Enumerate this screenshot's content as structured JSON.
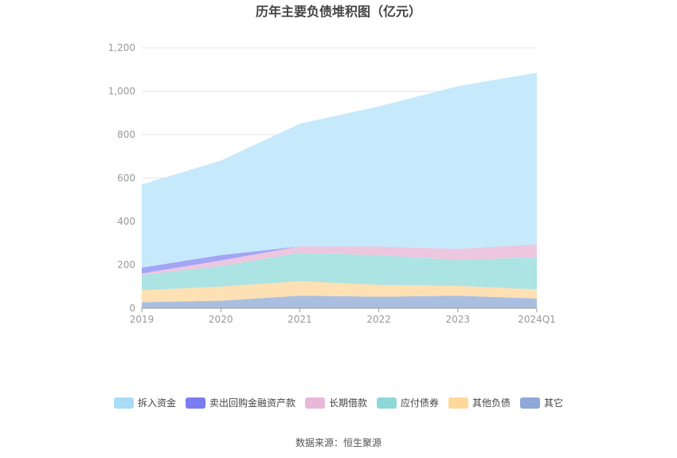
{
  "chart_data": {
    "type": "area",
    "stacked": true,
    "title": "历年主要负债堆积图（亿元）",
    "categories": [
      "2019",
      "2020",
      "2021",
      "2022",
      "2023",
      "2024Q1"
    ],
    "ylim": [
      0,
      1200
    ],
    "yticks": [
      "0",
      "200",
      "400",
      "600",
      "800",
      "1,000",
      "1,200"
    ],
    "ytick_values": [
      0,
      200,
      400,
      600,
      800,
      1000,
      1200
    ],
    "grid": true,
    "legend_position": "bottom",
    "series": [
      {
        "name": "其它",
        "color": "#aabfe0",
        "values": [
          28,
          35,
          58,
          53,
          58,
          45
        ]
      },
      {
        "name": "其他负债",
        "color": "#fde0b4",
        "values": [
          55,
          65,
          67,
          55,
          45,
          42
        ]
      },
      {
        "name": "应付债券",
        "color": "#ace3e3",
        "values": [
          70,
          95,
          130,
          137,
          120,
          148
        ]
      },
      {
        "name": "长期借款",
        "color": "#edc6e0",
        "values": [
          7,
          25,
          30,
          40,
          50,
          60
        ]
      },
      {
        "name": "卖出回购金融资产款",
        "color": "#a3a5f5",
        "values": [
          27,
          25,
          0,
          0,
          0,
          0
        ]
      },
      {
        "name": "拆入资金",
        "color": "#c6e9fb",
        "values": [
          383,
          435,
          565,
          645,
          750,
          790
        ]
      }
    ],
    "legend_order": [
      "拆入资金",
      "卖出回购金融资产款",
      "长期借款",
      "应付债券",
      "其他负债",
      "其它"
    ],
    "legend_colors": {
      "拆入资金": "#a8dcf7",
      "卖出回购金融资产款": "#7b7cf0",
      "长期借款": "#e8b8d8",
      "应付债券": "#8ed8d8",
      "其他负债": "#fcd89a",
      "其它": "#8ea8d8"
    },
    "source": "数据来源：恒生聚源"
  }
}
